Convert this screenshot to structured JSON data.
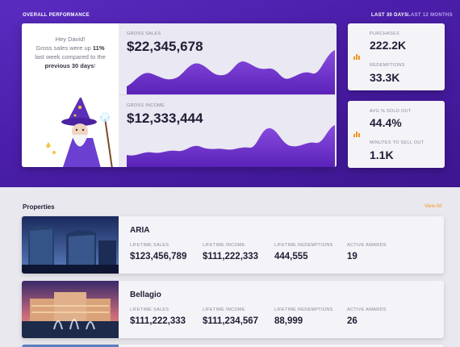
{
  "header": {
    "title": "OVERALL PERFORMANCE",
    "ranges": [
      "LAST 30 DAYS",
      "LAST 12 MONTHS"
    ],
    "active_range": "LAST 30 DAYS"
  },
  "greeting": {
    "line1": "Hey David!",
    "line2_pre": "Gross sales were up ",
    "percent": "11%",
    "line3": "last week compared to the",
    "period": "previous 30 days",
    "suffix": "!"
  },
  "charts": {
    "gross_sales": {
      "label": "GROSS SALES",
      "value": "$22,345,678"
    },
    "gross_income": {
      "label": "GROSS INCOME",
      "value": "$12,333,444"
    }
  },
  "stats": {
    "purchases": {
      "label": "PURCHASES",
      "value": "222.2K"
    },
    "redemptions": {
      "label": "REDEMPTIONS",
      "value": "33.3K"
    },
    "avg_sold_out": {
      "label": "AVG % SOLD OUT",
      "value": "44.4%"
    },
    "minutes_to_sell_out": {
      "label": "MINUTES TO SELL OUT",
      "value": "1.1K"
    }
  },
  "properties": {
    "title": "Properties",
    "view_all": "View All",
    "metric_labels": [
      "LIFETIME SALES",
      "LIFETIME INCOME",
      "LIFETIME REDEMPTIONS",
      "ACTIVE AWARDS"
    ],
    "items": [
      {
        "name": "ARIA",
        "metrics": [
          "$123,456,789",
          "$111,222,333",
          "444,555",
          "19"
        ]
      },
      {
        "name": "Bellagio",
        "metrics": [
          "$111,222,333",
          "$111,234,567",
          "88,999",
          "26"
        ]
      }
    ]
  },
  "colors": {
    "accent": "#f0961d",
    "purple": "#5a2bc0",
    "area": "#7a3fd6"
  },
  "icons": {
    "stat": "bar-chart-icon"
  }
}
